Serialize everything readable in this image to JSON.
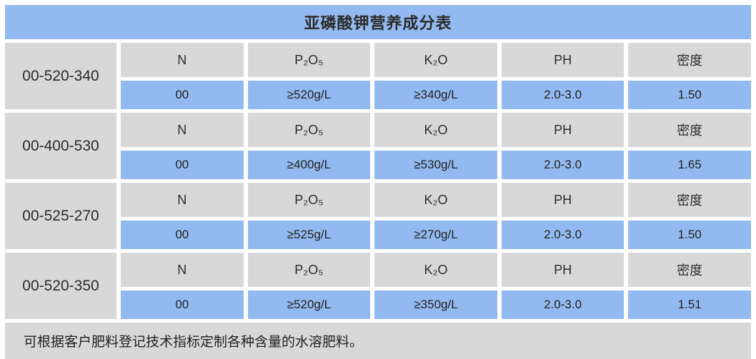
{
  "title": "亚磷酸钾营养成分表",
  "columns": [
    "N",
    "P₂O₅",
    "K₂O",
    "PH",
    "密度"
  ],
  "products": [
    {
      "code": "00-520-340",
      "values": [
        "00",
        "≥520g/L",
        "≥340g/L",
        "2.0-3.0",
        "1.50"
      ]
    },
    {
      "code": "00-400-530",
      "values": [
        "00",
        "≥400g/L",
        "≥530g/L",
        "2.0-3.0",
        "1.65"
      ]
    },
    {
      "code": "00-525-270",
      "values": [
        "00",
        "≥525g/L",
        "≥270g/L",
        "2.0-3.0",
        "1.50"
      ]
    },
    {
      "code": "00-520-350",
      "values": [
        "00",
        "≥520g/L",
        "≥350g/L",
        "2.0-3.0",
        "1.51"
      ]
    }
  ],
  "footer_note": "可根据客户肥料登记技术指标定制各种含量的水溶肥料。",
  "colors": {
    "accent_blue": "#93BAF0",
    "cell_gray": "#D8D8D8",
    "text_dark": "#2B2B2B",
    "background": "#FFFFFF"
  }
}
